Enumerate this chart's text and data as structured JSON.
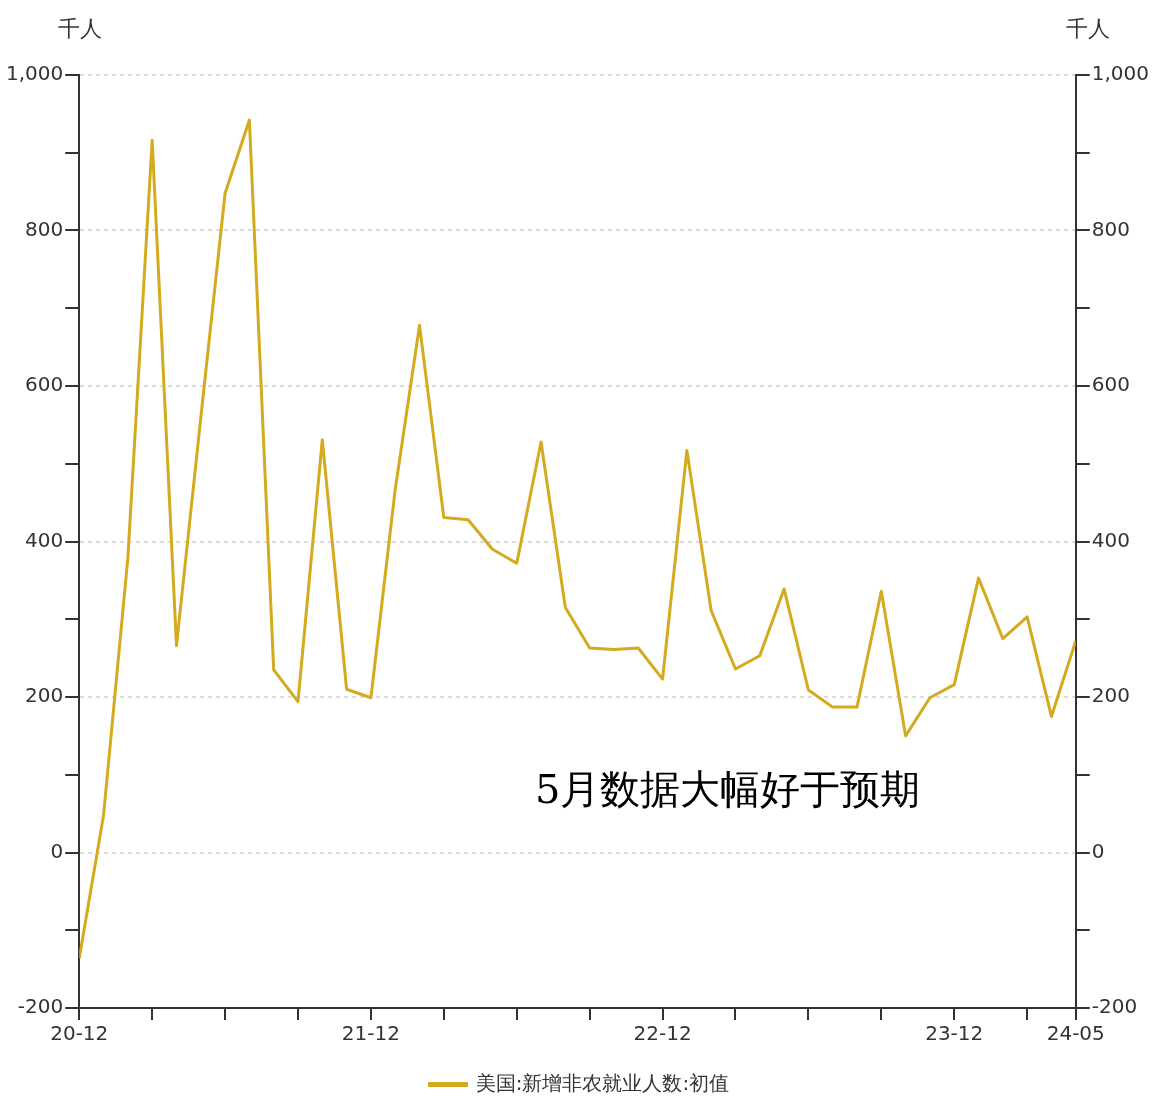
{
  "chart_data": {
    "type": "line",
    "ylabel": "千人",
    "y2label": "千人",
    "categories": [
      "20-12",
      null,
      null,
      null,
      null,
      null,
      null,
      null,
      null,
      null,
      null,
      null,
      "21-12",
      null,
      null,
      null,
      null,
      null,
      null,
      null,
      null,
      null,
      null,
      null,
      "22-12",
      null,
      null,
      null,
      null,
      null,
      null,
      null,
      null,
      null,
      null,
      null,
      "23-12",
      null,
      null,
      null,
      null,
      "24-05"
    ],
    "series": [
      {
        "name": "美国:新增非农就业人数:初值",
        "color": "#d4aa1e",
        "values": [
          -136,
          48,
          379,
          916,
          266,
          559,
          848,
          942,
          235,
          194,
          531,
          210,
          199,
          467,
          678,
          431,
          428,
          390,
          372,
          528,
          315,
          263,
          261,
          263,
          223,
          517,
          311,
          236,
          253,
          339,
          209,
          187,
          187,
          336,
          150,
          199,
          216,
          353,
          275,
          303,
          175,
          272
        ]
      }
    ],
    "ylim": [
      -200,
      1000
    ],
    "yticks": [
      -200,
      {
        "value": -100,
        "label": null
      },
      0,
      {
        "value": 100,
        "label": null
      },
      200,
      {
        "value": 300,
        "label": null
      },
      400,
      {
        "value": 500,
        "label": null
      },
      600,
      {
        "value": 700,
        "label": null
      },
      800,
      {
        "value": 900,
        "label": null
      },
      {
        "value": 1000,
        "label": "1,000"
      }
    ],
    "y2lim": [
      -200,
      1000
    ],
    "y2ticks": [
      -200,
      {
        "value": -100,
        "label": null
      },
      0,
      {
        "value": 100,
        "label": null
      },
      200,
      {
        "value": 300,
        "label": null
      },
      400,
      {
        "value": 500,
        "label": null
      },
      600,
      {
        "value": 700,
        "label": null
      },
      800,
      {
        "value": 900,
        "label": null
      },
      {
        "value": 1000,
        "label": "1,000"
      }
    ],
    "grid": "y",
    "legend": "bottom",
    "marker": "none",
    "line_style": "solid",
    "annotations": [
      "5月数据大幅好于预期"
    ]
  }
}
